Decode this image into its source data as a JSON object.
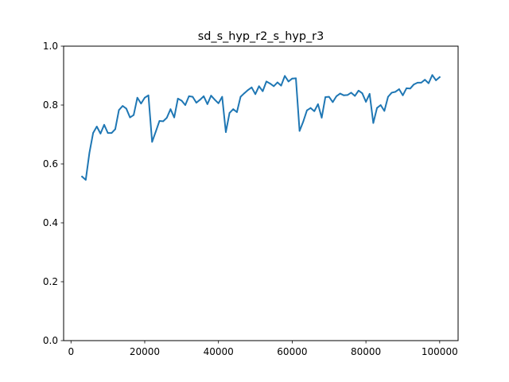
{
  "chart_data": {
    "type": "line",
    "title": "sd_s_hyp_r2_s_hyp_r3",
    "xlabel": "",
    "ylabel": "",
    "xlim": [
      -2000,
      105000
    ],
    "ylim": [
      0.0,
      1.0
    ],
    "xticks": [
      0,
      20000,
      40000,
      60000,
      80000,
      100000
    ],
    "xtick_labels": [
      "0",
      "20000",
      "40000",
      "60000",
      "80000",
      "100000"
    ],
    "yticks": [
      0.0,
      0.2,
      0.4,
      0.6,
      0.8,
      1.0
    ],
    "ytick_labels": [
      "0.0",
      "0.2",
      "0.4",
      "0.6",
      "0.8",
      "1.0"
    ],
    "grid": false,
    "legend": "none",
    "series": [
      {
        "color": "#1f77b4",
        "x": [
          3000,
          4000,
          5000,
          6000,
          7000,
          8000,
          9000,
          10000,
          11000,
          12000,
          13000,
          14000,
          15000,
          16000,
          17000,
          18000,
          19000,
          20000,
          21000,
          22000,
          23000,
          24000,
          25000,
          26000,
          27000,
          28000,
          29000,
          30000,
          31000,
          32000,
          33000,
          34000,
          35000,
          36000,
          37000,
          38000,
          39000,
          40000,
          41000,
          42000,
          43000,
          44000,
          45000,
          46000,
          47000,
          48000,
          49000,
          50000,
          51000,
          52000,
          53000,
          54000,
          55000,
          56000,
          57000,
          58000,
          59000,
          60000,
          61000,
          62000,
          63000,
          64000,
          65000,
          66000,
          67000,
          68000,
          69000,
          70000,
          71000,
          72000,
          73000,
          74000,
          75000,
          76000,
          77000,
          78000,
          79000,
          80000,
          81000,
          82000,
          83000,
          84000,
          85000,
          86000,
          87000,
          88000,
          89000,
          90000,
          91000,
          92000,
          93000,
          94000,
          95000,
          96000,
          97000,
          98000,
          99000,
          100000
        ],
        "y": [
          0.557,
          0.546,
          0.638,
          0.705,
          0.727,
          0.703,
          0.733,
          0.705,
          0.705,
          0.718,
          0.783,
          0.797,
          0.788,
          0.758,
          0.766,
          0.825,
          0.805,
          0.825,
          0.833,
          0.675,
          0.71,
          0.746,
          0.745,
          0.757,
          0.786,
          0.758,
          0.822,
          0.815,
          0.8,
          0.83,
          0.828,
          0.808,
          0.818,
          0.83,
          0.803,
          0.832,
          0.818,
          0.806,
          0.828,
          0.708,
          0.773,
          0.786,
          0.776,
          0.828,
          0.84,
          0.851,
          0.86,
          0.837,
          0.864,
          0.847,
          0.88,
          0.873,
          0.864,
          0.877,
          0.866,
          0.899,
          0.88,
          0.89,
          0.891,
          0.712,
          0.744,
          0.782,
          0.79,
          0.779,
          0.803,
          0.757,
          0.827,
          0.828,
          0.81,
          0.83,
          0.839,
          0.833,
          0.834,
          0.842,
          0.831,
          0.849,
          0.84,
          0.811,
          0.838,
          0.739,
          0.79,
          0.8,
          0.78,
          0.828,
          0.842,
          0.845,
          0.854,
          0.833,
          0.857,
          0.856,
          0.87,
          0.876,
          0.876,
          0.886,
          0.874,
          0.902,
          0.884,
          0.895
        ]
      }
    ]
  }
}
